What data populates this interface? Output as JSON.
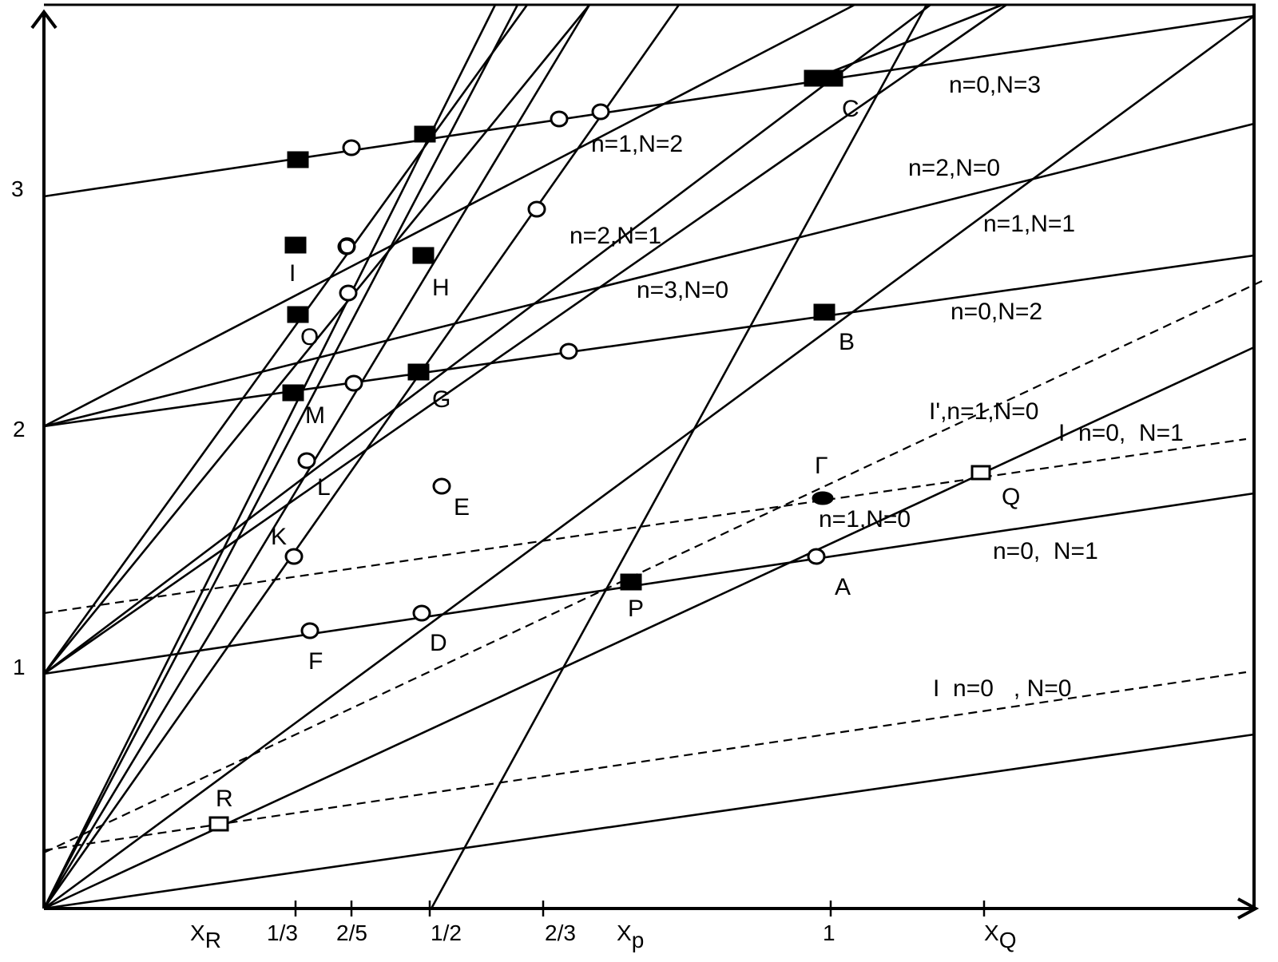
{
  "chart_data": {
    "type": "diagram",
    "title": "",
    "xlabel": "",
    "ylabel": "",
    "y_ticks": [
      "1",
      "2",
      "3"
    ],
    "x_ticks": [
      {
        "main": "X",
        "sub": "R"
      },
      {
        "main": "1/3",
        "sub": ""
      },
      {
        "main": "2/5",
        "sub": ""
      },
      {
        "main": "1/2",
        "sub": ""
      },
      {
        "main": "2/3",
        "sub": ""
      },
      {
        "main": "X",
        "sub": "p"
      },
      {
        "main": "1",
        "sub": ""
      },
      {
        "main": "X",
        "sub": "Q"
      }
    ],
    "line_labels": [
      "n=0,N=3",
      "n=1,N=2",
      "n=2,N=0",
      "n=1,N=1",
      "n=2,N=1",
      "n=3,N=0",
      "n=0,N=2",
      "I',n=1,N=0",
      "I  n=0,  N=1",
      "n=1,N=0",
      "n=0,  N=1",
      "I  n=0   , N=0"
    ],
    "point_labels": [
      "C",
      "I",
      "O",
      "H",
      "O",
      "G",
      "M",
      "L",
      "E",
      "K",
      "F",
      "D",
      "P",
      "A",
      "B",
      "Γ",
      "Q",
      "R"
    ]
  }
}
